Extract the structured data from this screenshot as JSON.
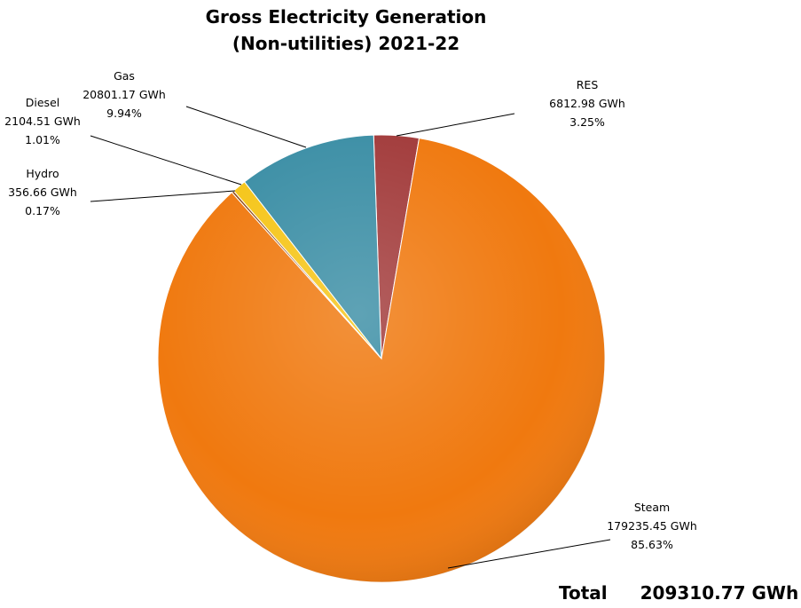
{
  "chart_data": {
    "type": "pie",
    "title": [
      "Gross Electricity Generation",
      "(Non-utilities) 2021-22"
    ],
    "slices": [
      {
        "label": "RES",
        "value_text": "6812.98 GWh",
        "percent_text": "3.25%",
        "value": 6812.98,
        "percent": 3.25,
        "color": "#A23B3B"
      },
      {
        "label": "Steam",
        "value_text": "179235.45 GWh",
        "percent_text": "85.63%",
        "value": 179235.45,
        "percent": 85.63,
        "color": "#F0790F"
      },
      {
        "label": "Hydro",
        "value_text": "356.66 GWh",
        "percent_text": "0.17%",
        "value": 356.66,
        "percent": 0.17,
        "color": "#8B4513"
      },
      {
        "label": "Diesel",
        "value_text": "2104.51 GWh",
        "percent_text": "1.01%",
        "value": 2104.51,
        "percent": 1.01,
        "color": "#F5C518"
      },
      {
        "label": "Gas",
        "value_text": "20801.17 GWh",
        "percent_text": "9.94%",
        "value": 20801.17,
        "percent": 9.94,
        "color": "#3B8EA5"
      }
    ],
    "total": {
      "label": "Total",
      "value_text": "209310.77 GWh",
      "value": 209310.77
    }
  }
}
